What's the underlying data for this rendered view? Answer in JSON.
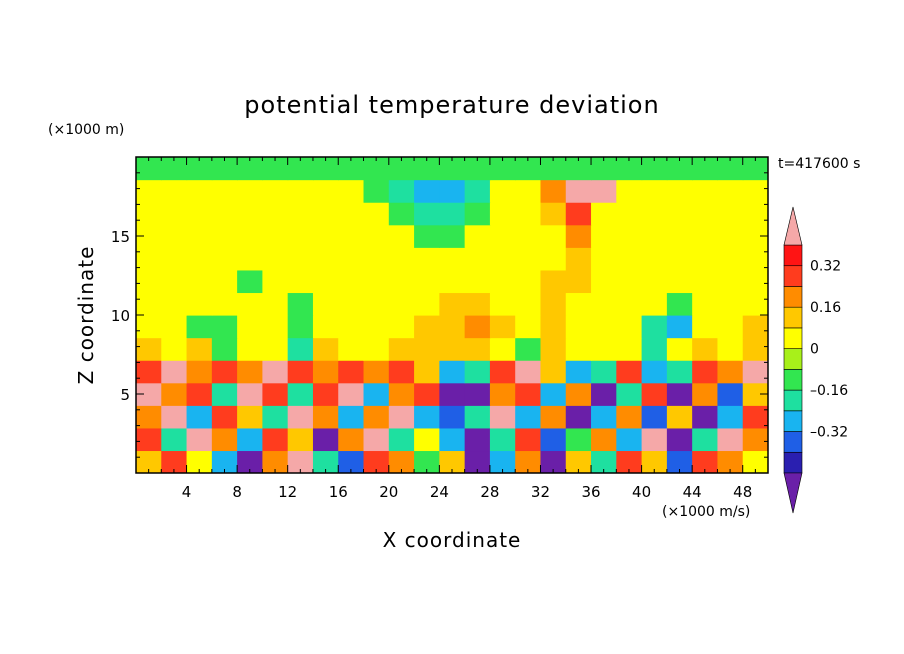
{
  "chart_data": {
    "type": "heatmap",
    "title": "potential temperature deviation",
    "xlabel": "X coordinate",
    "ylabel": "Z coordinate",
    "x_unit": "(×1000 m/s)",
    "y_unit": "(×1000 m)",
    "time_label": "t=417600 s",
    "xlim": [
      0,
      50
    ],
    "ylim": [
      0,
      20
    ],
    "x_ticks": [
      4,
      8,
      12,
      16,
      20,
      24,
      28,
      32,
      36,
      40,
      44,
      48
    ],
    "y_ticks": [
      5,
      10,
      15
    ],
    "colorbar": {
      "levels": [
        -0.48,
        -0.4,
        -0.32,
        -0.24,
        -0.16,
        -0.08,
        0,
        0.08,
        0.16,
        0.24,
        0.32,
        0.4
      ],
      "tick_values": [
        0.32,
        0.16,
        0,
        -0.16,
        -0.32
      ],
      "tick_labels": [
        "0.32",
        "0.16",
        "0",
        "–0.16",
        "–0.32"
      ],
      "colors": [
        "#6a1fa8",
        "#2a1fb0",
        "#1f5fe6",
        "#19b4f0",
        "#1ee0a0",
        "#32e650",
        "#a8f01a",
        "#ffff00",
        "#ffc800",
        "#ff8c00",
        "#ff3c1e",
        "#ff1414",
        "#f5a8a8"
      ],
      "extend": "both"
    },
    "field": [
      [
        0.1,
        0.3,
        0.0,
        -0.3,
        -0.5,
        0.2,
        0.4,
        -0.2,
        -0.4,
        0.3,
        0.2,
        -0.1,
        0.1,
        -0.6,
        -0.3,
        0.2,
        -0.5,
        0.1,
        -0.2,
        0.3,
        0.1,
        -0.4,
        0.3,
        0.2,
        0.0
      ],
      [
        0.3,
        -0.2,
        0.4,
        0.2,
        -0.3,
        0.3,
        0.1,
        -0.5,
        0.2,
        0.4,
        -0.2,
        0.0,
        -0.3,
        -0.5,
        -0.2,
        0.3,
        -0.4,
        -0.1,
        0.2,
        -0.3,
        0.4,
        -0.5,
        -0.2,
        0.4,
        0.2
      ],
      [
        0.2,
        0.4,
        -0.3,
        0.3,
        0.1,
        -0.2,
        0.4,
        0.2,
        -0.3,
        0.2,
        0.4,
        -0.3,
        -0.4,
        -0.2,
        0.4,
        -0.3,
        0.2,
        -0.5,
        -0.3,
        0.2,
        -0.4,
        0.1,
        -0.5,
        -0.3,
        0.3
      ],
      [
        0.4,
        0.2,
        0.3,
        -0.2,
        0.4,
        0.3,
        -0.2,
        0.3,
        0.4,
        -0.3,
        0.2,
        0.3,
        -0.5,
        -0.5,
        0.2,
        0.3,
        -0.3,
        0.2,
        -0.5,
        -0.2,
        0.3,
        -0.5,
        0.2,
        -0.4,
        0.1
      ],
      [
        0.3,
        0.4,
        0.2,
        0.3,
        0.2,
        0.4,
        0.3,
        0.2,
        0.3,
        0.2,
        0.3,
        0.1,
        -0.3,
        -0.2,
        0.3,
        0.4,
        0.1,
        -0.3,
        -0.2,
        0.3,
        -0.3,
        -0.2,
        0.3,
        0.2,
        0.4
      ],
      [
        0.1,
        0.0,
        0.1,
        -0.1,
        0.0,
        0.0,
        -0.2,
        0.1,
        0.0,
        0.0,
        0.1,
        0.1,
        0.1,
        0.1,
        0.0,
        -0.1,
        0.1,
        0.0,
        0.0,
        0.0,
        -0.2,
        0.0,
        0.1,
        0.0,
        0.1
      ],
      [
        0.0,
        0.0,
        -0.1,
        -0.1,
        0.0,
        0.0,
        -0.1,
        0.0,
        0.0,
        0.0,
        0.0,
        0.1,
        0.1,
        0.2,
        0.1,
        0.0,
        0.1,
        0.0,
        0.0,
        0.0,
        -0.2,
        -0.3,
        0.0,
        0.0,
        0.1
      ],
      [
        0.0,
        0.0,
        0.0,
        0.0,
        0.0,
        0.0,
        -0.1,
        0.0,
        0.0,
        0.0,
        0.0,
        0.0,
        0.1,
        0.1,
        0.0,
        0.0,
        0.1,
        0.0,
        0.0,
        0.0,
        0.0,
        -0.1,
        0.0,
        0.0,
        0.0
      ],
      [
        0.0,
        0.0,
        0.0,
        0.0,
        -0.1,
        0.0,
        0.0,
        0.0,
        0.0,
        0.0,
        0.0,
        0.0,
        0.0,
        0.0,
        0.0,
        0.0,
        0.1,
        0.1,
        0.0,
        0.0,
        0.0,
        0.0,
        0.0,
        0.0,
        0.0
      ],
      [
        0.0,
        0.0,
        0.0,
        0.0,
        0.0,
        0.0,
        0.0,
        0.0,
        0.0,
        0.0,
        0.0,
        0.0,
        0.0,
        0.0,
        0.0,
        0.0,
        0.0,
        0.1,
        0.0,
        0.0,
        0.0,
        0.0,
        0.0,
        0.0,
        0.0
      ],
      [
        0.0,
        0.0,
        0.0,
        0.0,
        0.0,
        0.0,
        0.0,
        0.0,
        0.0,
        0.0,
        0.0,
        -0.1,
        -0.1,
        0.0,
        0.0,
        0.0,
        0.0,
        0.2,
        0.0,
        0.0,
        0.0,
        0.0,
        0.0,
        0.0,
        0.0
      ],
      [
        0.0,
        0.0,
        0.0,
        0.0,
        0.0,
        0.0,
        0.0,
        0.0,
        0.0,
        0.0,
        -0.1,
        -0.2,
        -0.2,
        -0.1,
        0.0,
        0.0,
        0.1,
        0.3,
        0.0,
        0.0,
        0.0,
        0.0,
        0.0,
        0.0,
        0.0
      ],
      [
        0.0,
        0.0,
        0.0,
        0.0,
        0.0,
        0.0,
        0.0,
        0.0,
        0.0,
        -0.1,
        -0.2,
        -0.3,
        -0.3,
        -0.2,
        0.0,
        0.0,
        0.2,
        0.5,
        0.5,
        0.0,
        0.0,
        0.0,
        0.0,
        0.0,
        0.0
      ],
      [
        -0.1,
        -0.1,
        -0.1,
        -0.1,
        -0.1,
        -0.1,
        -0.1,
        -0.1,
        -0.1,
        -0.1,
        -0.1,
        -0.1,
        -0.1,
        -0.1,
        -0.1,
        -0.1,
        -0.1,
        -0.1,
        -0.1,
        -0.1,
        -0.1,
        -0.1,
        -0.1,
        -0.1,
        -0.1
      ]
    ]
  }
}
